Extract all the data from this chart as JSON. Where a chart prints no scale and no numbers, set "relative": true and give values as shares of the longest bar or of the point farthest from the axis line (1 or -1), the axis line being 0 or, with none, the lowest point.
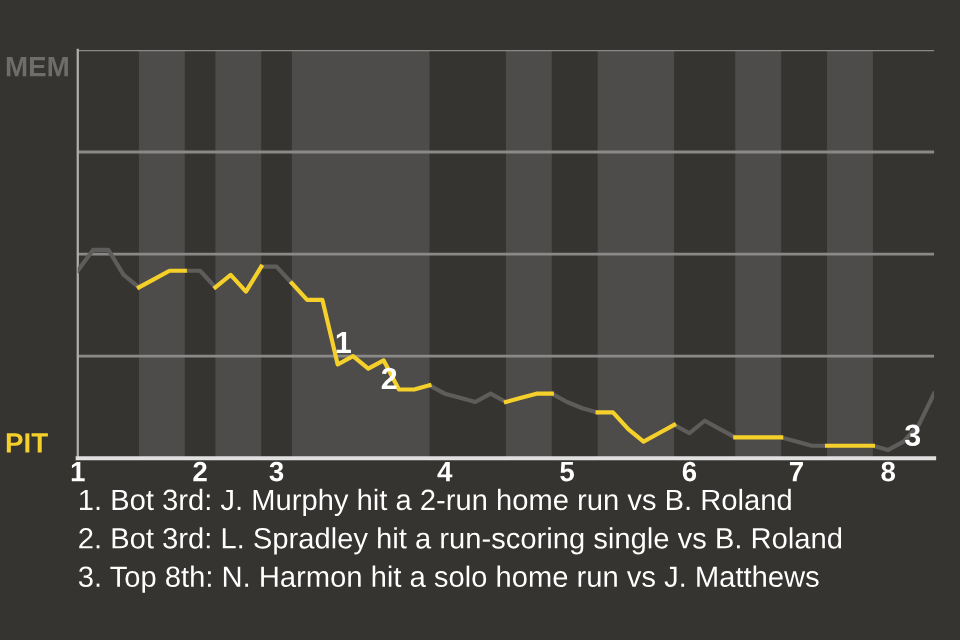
{
  "chart_data": {
    "type": "line",
    "relative": true,
    "categories": [
      "1",
      null,
      null,
      null,
      null,
      null,
      null,
      null,
      "2",
      null,
      null,
      null,
      null,
      "3",
      null,
      null,
      null,
      null,
      null,
      null,
      null,
      null,
      null,
      null,
      "4",
      null,
      null,
      null,
      null,
      null,
      null,
      null,
      "5",
      null,
      null,
      null,
      null,
      null,
      null,
      null,
      "6",
      null,
      null,
      null,
      null,
      null,
      null,
      "7",
      null,
      null,
      null,
      null,
      null,
      "8",
      null,
      null,
      null
    ],
    "series": [
      {
        "color": "#5e5d5b",
        "values": [
          0.9,
          1,
          1,
          0.88,
          0.82,
          null,
          null,
          0.9,
          0.9,
          0.82,
          null,
          null,
          0.92,
          0.92,
          0.84,
          null,
          null,
          null,
          null,
          null,
          null,
          null,
          null,
          0.35,
          0.31,
          0.29,
          0.27,
          0.31,
          0.27,
          null,
          null,
          0.31,
          0.27,
          0.24,
          0.22,
          null,
          null,
          null,
          null,
          0.16,
          0.12,
          0.18,
          0.14,
          0.1,
          null,
          null,
          0.1,
          0.08,
          0.06,
          0.06,
          null,
          null,
          0.06,
          0.04,
          0.08,
          0.16,
          0.31
        ]
      },
      {
        "color": "#f5d02a",
        "values": [
          null,
          null,
          null,
          null,
          0.82,
          0.86,
          0.9,
          0.9,
          null,
          0.82,
          0.88,
          0.8,
          0.92,
          null,
          0.84,
          0.76,
          0.76,
          0.45,
          0.49,
          0.43,
          0.47,
          0.33,
          0.33,
          0.35,
          null,
          null,
          null,
          null,
          0.27,
          0.29,
          0.31,
          0.31,
          null,
          null,
          0.22,
          0.22,
          0.14,
          0.08,
          0.12,
          0.16,
          null,
          null,
          null,
          0.1,
          0.1,
          0.1,
          0.1,
          null,
          null,
          0.06,
          0.06,
          0.06,
          0.06,
          null,
          null,
          null,
          null
        ]
      }
    ],
    "ref_lines": [
      {
        "axis": "y",
        "value": 0.49,
        "color": "#8a8987"
      },
      {
        "axis": "y",
        "value": 0.98,
        "color": "#8a8987"
      },
      {
        "axis": "y",
        "value": 1.47,
        "color": "#8a8987"
      },
      {
        "axis": "y",
        "value": 1.96,
        "color": "#8a8987"
      }
    ],
    "marker": "none",
    "line_style": "solid",
    "annotations": [
      "MEM",
      "PIT",
      {
        "text": "1",
        "y": 0.45
      },
      {
        "text": "2",
        "y": 0.33
      },
      "3",
      "1. Bot 3rd: J. Murphy hit a 2-run home run vs B. Roland",
      "2. Bot 3rd: L. Spradley hit a run-scoring single vs B. Roland",
      "3. Top 8th: N. Harmon hit a solo home run vs J. Matthews"
    ]
  }
}
